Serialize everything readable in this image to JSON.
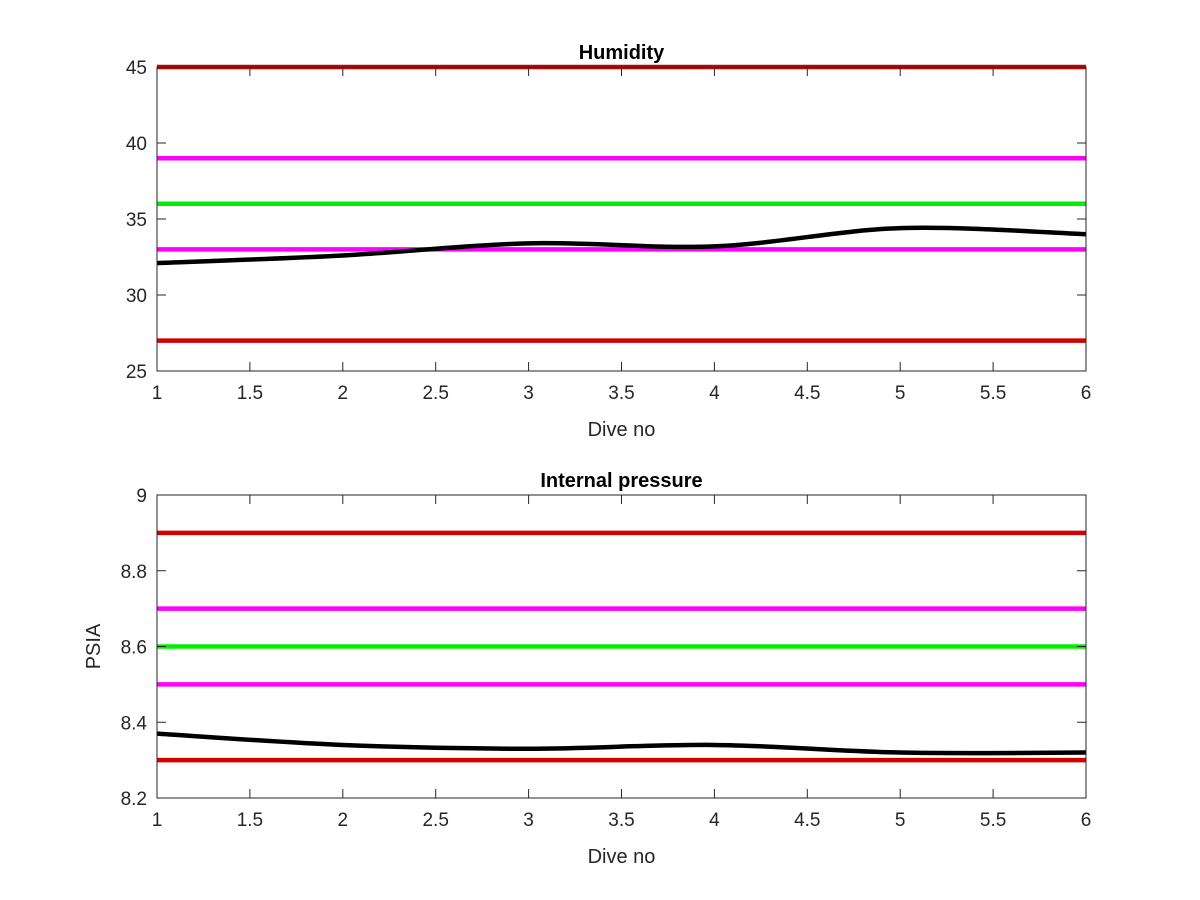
{
  "chart_data": [
    {
      "type": "line",
      "title": "Humidity",
      "xlabel": "Dive no",
      "ylabel": "",
      "xlim": [
        1,
        6
      ],
      "ylim": [
        25,
        45
      ],
      "xticks": [
        1,
        1.5,
        2,
        2.5,
        3,
        3.5,
        4,
        4.5,
        5,
        5.5,
        6
      ],
      "xtick_labels": [
        "1",
        "1.5",
        "2",
        "2.5",
        "3",
        "3.5",
        "4",
        "4.5",
        "5",
        "5.5",
        "6"
      ],
      "yticks": [
        25,
        30,
        35,
        40,
        45
      ],
      "ytick_labels": [
        "25",
        "30",
        "35",
        "40",
        "45"
      ],
      "grid": false,
      "reference_lines": [
        {
          "y": 45,
          "color": "#d40000"
        },
        {
          "y": 39,
          "color": "#ff00ff"
        },
        {
          "y": 36,
          "color": "#00ee00"
        },
        {
          "y": 33,
          "color": "#ff00ff"
        },
        {
          "y": 27,
          "color": "#d40000"
        }
      ],
      "series": [
        {
          "color": "#000000",
          "x": [
            1,
            2,
            3,
            4,
            5,
            6
          ],
          "values": [
            32.1,
            32.6,
            33.4,
            33.2,
            34.4,
            34.0
          ]
        }
      ]
    },
    {
      "type": "line",
      "title": "Internal pressure",
      "xlabel": "Dive no",
      "ylabel": "PSIA",
      "xlim": [
        1,
        6
      ],
      "ylim": [
        8.2,
        9.0
      ],
      "xticks": [
        1,
        1.5,
        2,
        2.5,
        3,
        3.5,
        4,
        4.5,
        5,
        5.5,
        6
      ],
      "xtick_labels": [
        "1",
        "1.5",
        "2",
        "2.5",
        "3",
        "3.5",
        "4",
        "4.5",
        "5",
        "5.5",
        "6"
      ],
      "yticks": [
        8.2,
        8.4,
        8.6,
        8.8,
        9.0
      ],
      "ytick_labels": [
        "8.2",
        "8.4",
        "8.6",
        "8.8",
        "9"
      ],
      "grid": false,
      "reference_lines": [
        {
          "y": 8.9,
          "color": "#d40000"
        },
        {
          "y": 8.7,
          "color": "#ff00ff"
        },
        {
          "y": 8.6,
          "color": "#00ee00"
        },
        {
          "y": 8.5,
          "color": "#ff00ff"
        },
        {
          "y": 8.3,
          "color": "#d40000"
        }
      ],
      "series": [
        {
          "color": "#000000",
          "x": [
            1,
            2,
            3,
            4,
            5,
            6
          ],
          "values": [
            8.37,
            8.34,
            8.33,
            8.34,
            8.32,
            8.32
          ]
        }
      ]
    }
  ]
}
